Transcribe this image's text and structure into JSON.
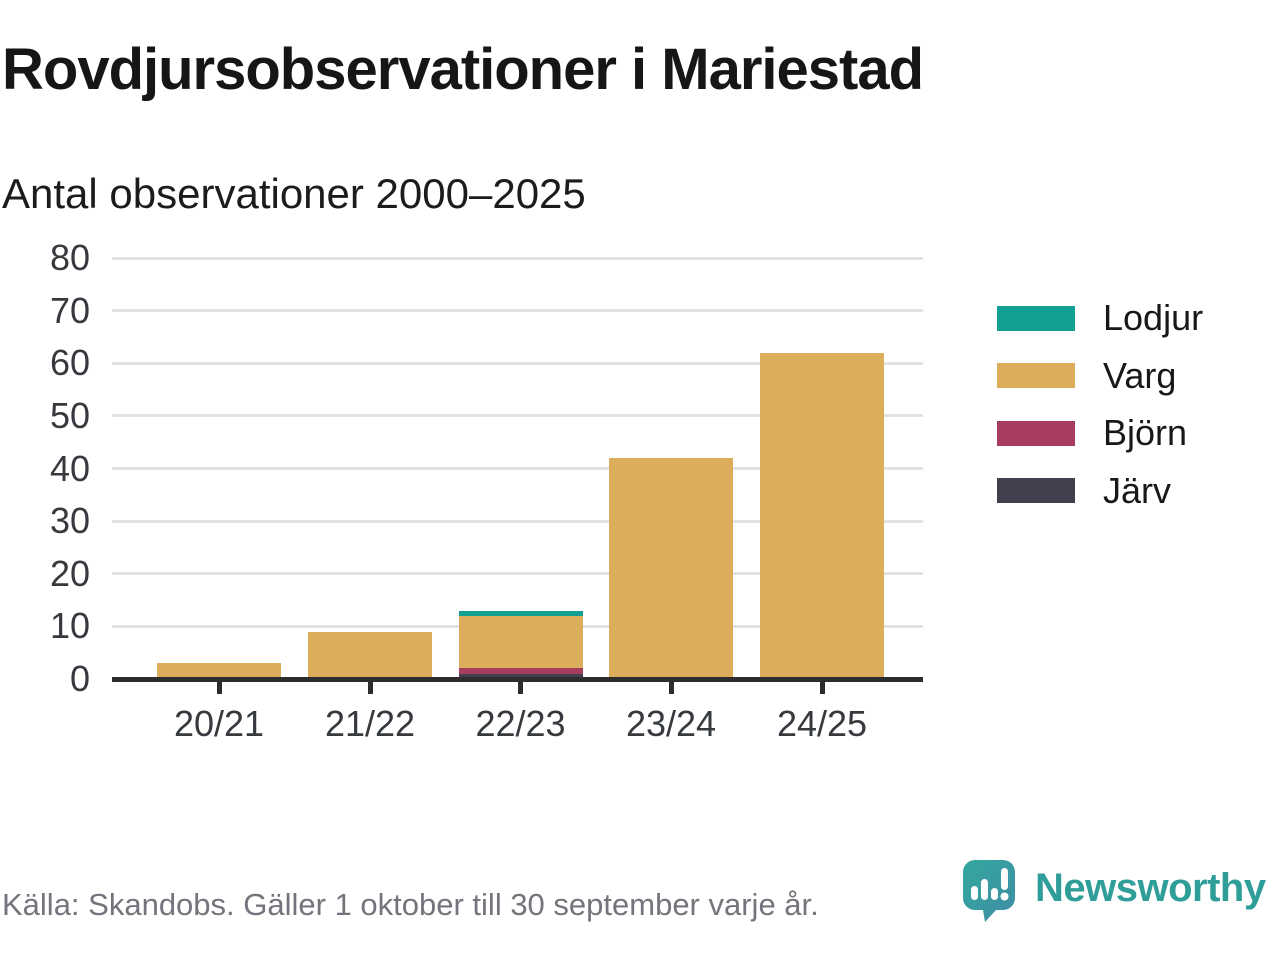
{
  "header": {
    "title": "Rovdjursobservationer i Mariestad",
    "subtitle": "Antal observationer 2000–2025"
  },
  "chart_data": {
    "type": "bar",
    "stacked": true,
    "title": "Rovdjursobservationer i Mariestad",
    "subtitle": "Antal observationer 2000–2025",
    "xlabel": "",
    "ylabel": "",
    "categories": [
      "20/21",
      "21/22",
      "22/23",
      "23/24",
      "24/25"
    ],
    "series": [
      {
        "name": "Lodjur",
        "color": "#12a095",
        "values": [
          0,
          0,
          1,
          0,
          0
        ]
      },
      {
        "name": "Varg",
        "color": "#dcad5b",
        "values": [
          3,
          9,
          10,
          42,
          62
        ]
      },
      {
        "name": "Björn",
        "color": "#a63c5e",
        "values": [
          0,
          0,
          1,
          0,
          0
        ]
      },
      {
        "name": "Järv",
        "color": "#443f4f",
        "values": [
          0,
          0,
          1,
          0,
          0
        ]
      }
    ],
    "stack_order_bottom_to_top": [
      "Järv",
      "Björn",
      "Varg",
      "Lodjur"
    ],
    "totals_per_category": [
      3,
      9,
      13,
      42,
      62
    ],
    "ylim": [
      0,
      80
    ],
    "yticks": [
      0,
      10,
      20,
      30,
      40,
      50,
      60,
      70,
      80
    ],
    "grid": "horizontal",
    "legend_position": "right",
    "axis_color": "#2d2d2d",
    "grid_color": "#e2e2e2",
    "tick_label_color": "#36393d"
  },
  "footer": {
    "source": "Källa: Skandobs. Gäller 1 oktober till 30 september varje år.",
    "brand": "Newsworthy",
    "brand_color": "#2f9e99"
  }
}
